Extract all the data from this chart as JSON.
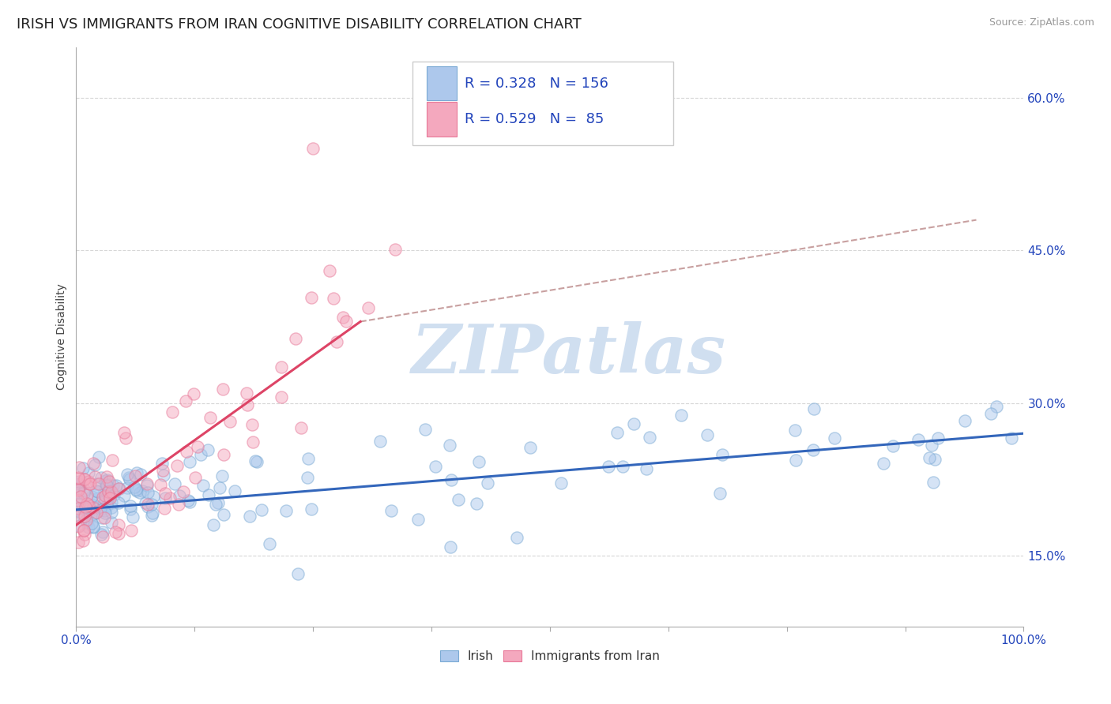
{
  "title": "IRISH VS IMMIGRANTS FROM IRAN COGNITIVE DISABILITY CORRELATION CHART",
  "source": "Source: ZipAtlas.com",
  "ylabel": "Cognitive Disability",
  "xlim": [
    0,
    100
  ],
  "ylim": [
    8,
    65
  ],
  "yticks": [
    15,
    30,
    45,
    60
  ],
  "ytick_labels": [
    "15.0%",
    "30.0%",
    "45.0%",
    "60.0%"
  ],
  "irish_R": 0.328,
  "irish_N": 156,
  "iran_R": 0.529,
  "iran_N": 85,
  "irish_color": "#adc8ec",
  "iran_color": "#f4a8be",
  "irish_edge_color": "#7aaad4",
  "iran_edge_color": "#e87898",
  "irish_line_color": "#3366bb",
  "iran_line_color": "#dd4466",
  "dashed_color": "#bb8888",
  "watermark_color": "#d0dff0",
  "background_color": "#ffffff",
  "grid_color": "#cccccc",
  "title_fontsize": 13,
  "axis_label_fontsize": 10,
  "tick_fontsize": 11,
  "legend_R_N_color": "#2244bb",
  "irish_trend_x0": 0,
  "irish_trend_x1": 100,
  "irish_trend_y0": 19.5,
  "irish_trend_y1": 27.0,
  "iran_trend_x0": 0,
  "iran_trend_x1": 30,
  "iran_trend_y0": 18.0,
  "iran_trend_y1": 38.0,
  "iran_dash_x0": 30,
  "iran_dash_x1": 95,
  "iran_dash_y0": 38.0,
  "iran_dash_y1": 48.0
}
